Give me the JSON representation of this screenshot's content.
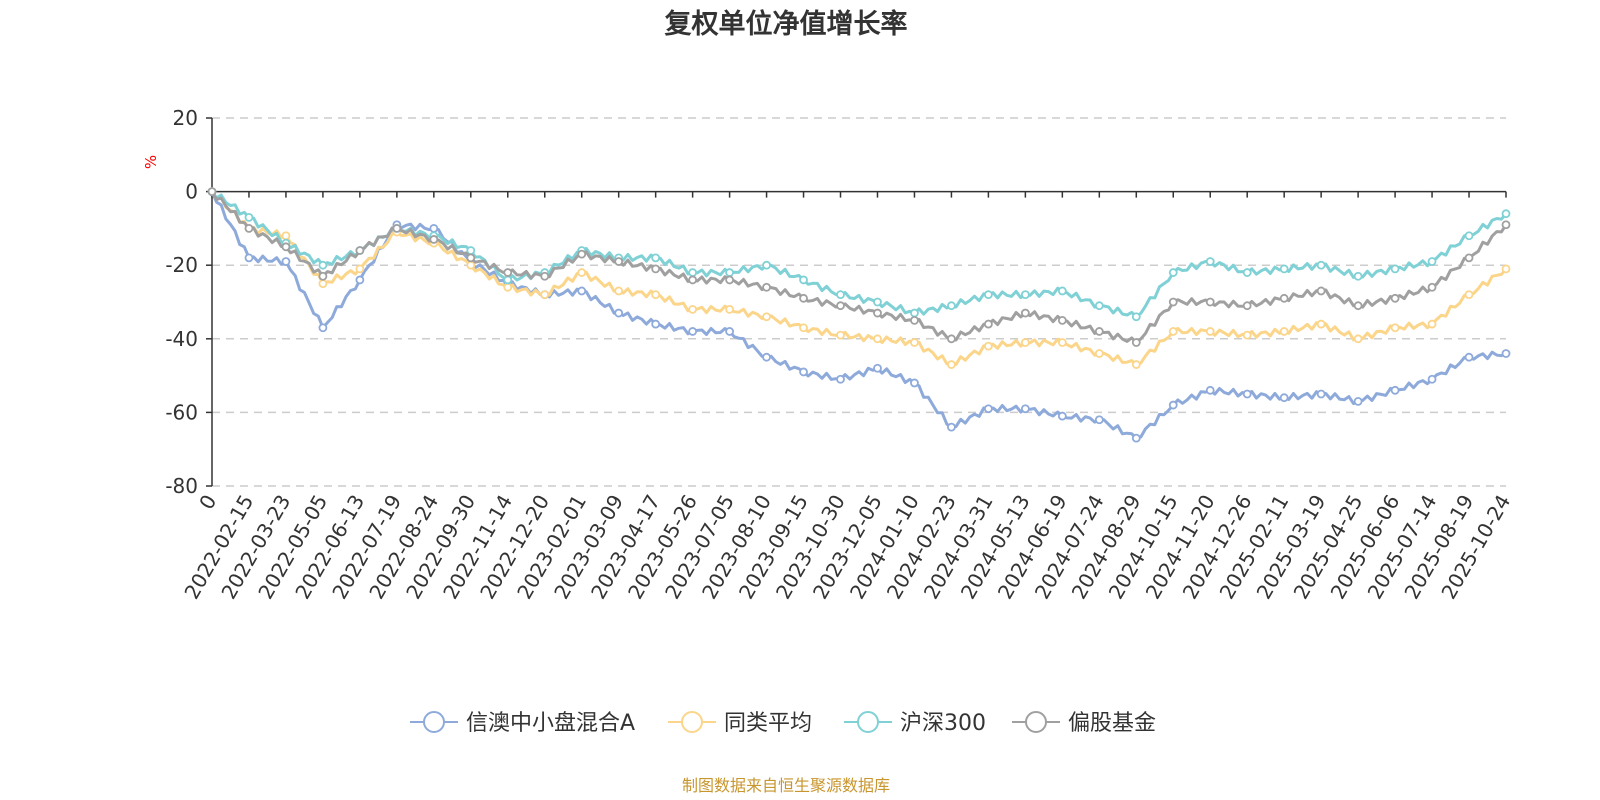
{
  "chart_data": {
    "type": "line",
    "title": "复权单位净值增长率",
    "ylabel": "%",
    "xlabel": "",
    "ylim": [
      -80,
      20
    ],
    "yticks": [
      20,
      0,
      -20,
      -40,
      -60,
      -80
    ],
    "grid": true,
    "legend_position": "bottom",
    "source": "制图数据来自恒生聚源数据库",
    "categories": [
      "0",
      "2022-02-15",
      "2022-03-23",
      "2022-05-05",
      "2022-06-13",
      "2022-07-19",
      "2022-08-24",
      "2022-09-30",
      "2022-11-14",
      "2022-12-20",
      "2023-02-01",
      "2023-03-09",
      "2023-04-17",
      "2023-05-26",
      "2023-07-05",
      "2023-08-10",
      "2023-09-15",
      "2023-10-30",
      "2023-12-05",
      "2024-01-10",
      "2024-02-23",
      "2024-03-31",
      "2024-05-13",
      "2024-06-19",
      "2024-07-24",
      "2024-08-29",
      "2024-10-15",
      "2024-11-20",
      "2024-12-26",
      "2025-02-11",
      "2025-03-19",
      "2025-04-25",
      "2025-06-06",
      "2025-07-14",
      "2025-08-19",
      "2025-10-24"
    ],
    "series": [
      {
        "name": "信澳中小盘混合A",
        "color": "#8eaadb",
        "values": [
          0,
          -18,
          -19,
          -37,
          -24,
          -9,
          -10,
          -19,
          -25,
          -28,
          -27,
          -33,
          -36,
          -38,
          -38,
          -45,
          -49,
          -51,
          -48,
          -52,
          -64,
          -59,
          -59,
          -61,
          -62,
          -67,
          -58,
          -54,
          -55,
          -56,
          -55,
          -57,
          -54,
          -51,
          -45,
          -44
        ]
      },
      {
        "name": "同类平均",
        "color": "#fbd58a",
        "values": [
          0,
          -10,
          -12,
          -25,
          -21,
          -11,
          -14,
          -20,
          -26,
          -28,
          -22,
          -27,
          -28,
          -32,
          -32,
          -34,
          -37,
          -39,
          -40,
          -41,
          -47,
          -42,
          -41,
          -41,
          -44,
          -47,
          -38,
          -38,
          -39,
          -38,
          -36,
          -40,
          -37,
          -36,
          -28,
          -21
        ]
      },
      {
        "name": "沪深300",
        "color": "#7fd1d6",
        "values": [
          0,
          -7,
          -14,
          -20,
          -16,
          -10,
          -12,
          -16,
          -24,
          -22,
          -16,
          -18,
          -18,
          -22,
          -22,
          -20,
          -24,
          -28,
          -30,
          -33,
          -31,
          -28,
          -28,
          -27,
          -31,
          -34,
          -22,
          -19,
          -22,
          -21,
          -20,
          -23,
          -21,
          -19,
          -12,
          -6
        ]
      },
      {
        "name": "偏股基金",
        "color": "#a0a0a0",
        "values": [
          0,
          -10,
          -15,
          -23,
          -16,
          -10,
          -13,
          -18,
          -22,
          -23,
          -17,
          -19,
          -21,
          -24,
          -24,
          -26,
          -29,
          -31,
          -33,
          -35,
          -40,
          -36,
          -33,
          -35,
          -38,
          -41,
          -30,
          -30,
          -31,
          -29,
          -27,
          -31,
          -29,
          -26,
          -18,
          -9
        ]
      }
    ]
  }
}
